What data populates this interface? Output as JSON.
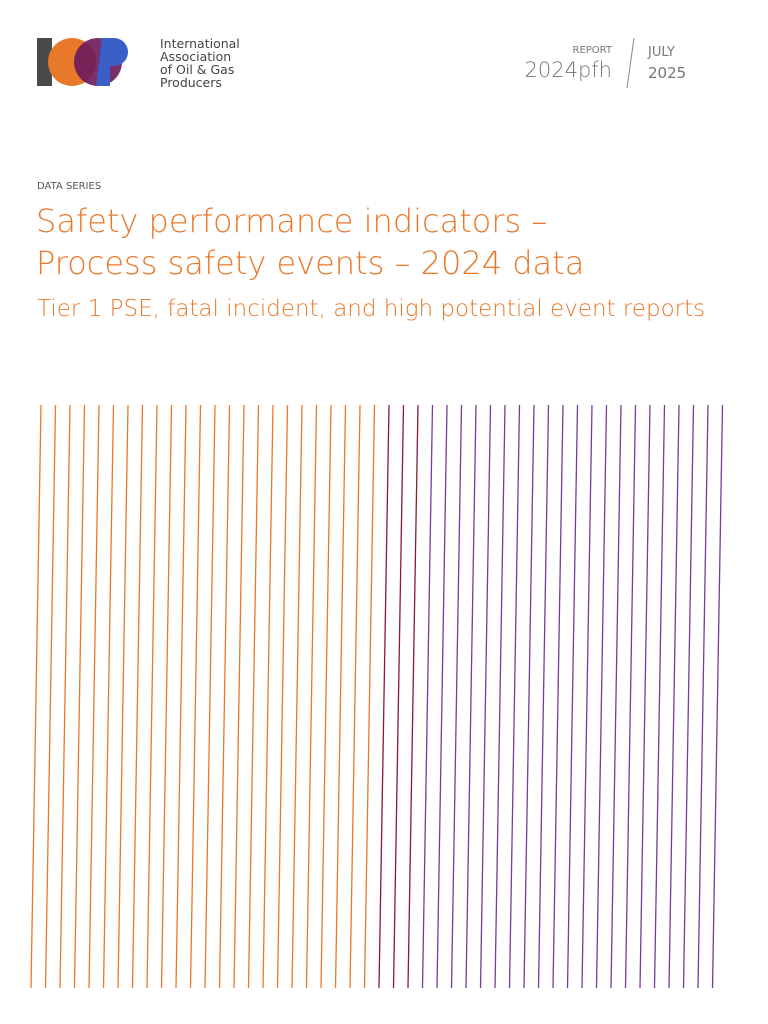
{
  "logo": {
    "lines": [
      "International",
      "Association",
      "of Oil & Gas",
      "Producers"
    ]
  },
  "report": {
    "label": "REPORT",
    "code": "2024pfh",
    "month": "JULY",
    "year": "2025"
  },
  "cover": {
    "series": "DATA SERIES",
    "title": [
      "Safety performance indicators –",
      "Process safety events – 2024 data"
    ],
    "subtitle": "Tier 1 PSE, fatal incident, and high potential event reports"
  }
}
